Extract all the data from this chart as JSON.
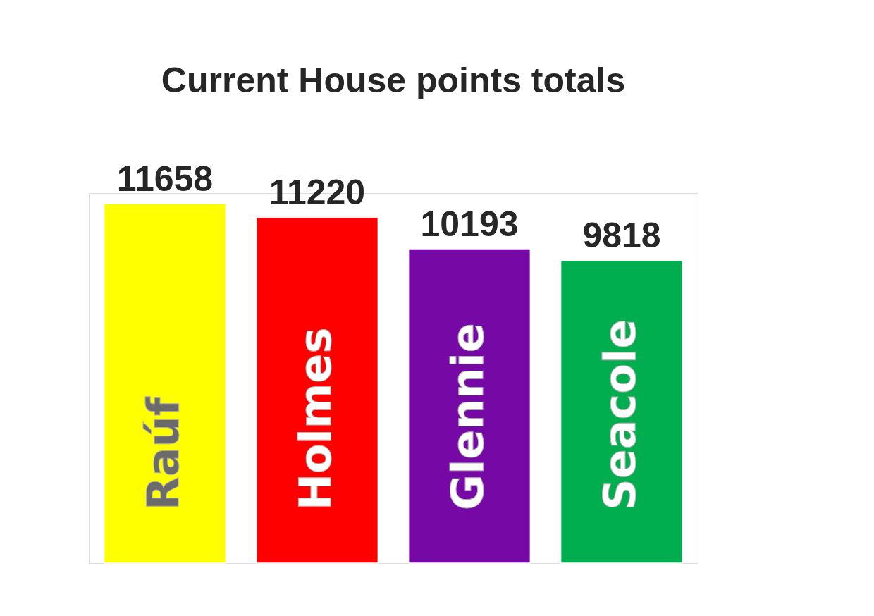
{
  "chart_data": {
    "type": "bar",
    "title": "Current House points totals",
    "categories": [
      "Raúf",
      "Holmes",
      "Glennie",
      "Seacole"
    ],
    "values": [
      11658,
      11220,
      10193,
      9818
    ],
    "colors": [
      "#ffff00",
      "#ff0000",
      "#7609a6",
      "#00ae4f"
    ],
    "data_labels": true,
    "tick_labels": false
  }
}
